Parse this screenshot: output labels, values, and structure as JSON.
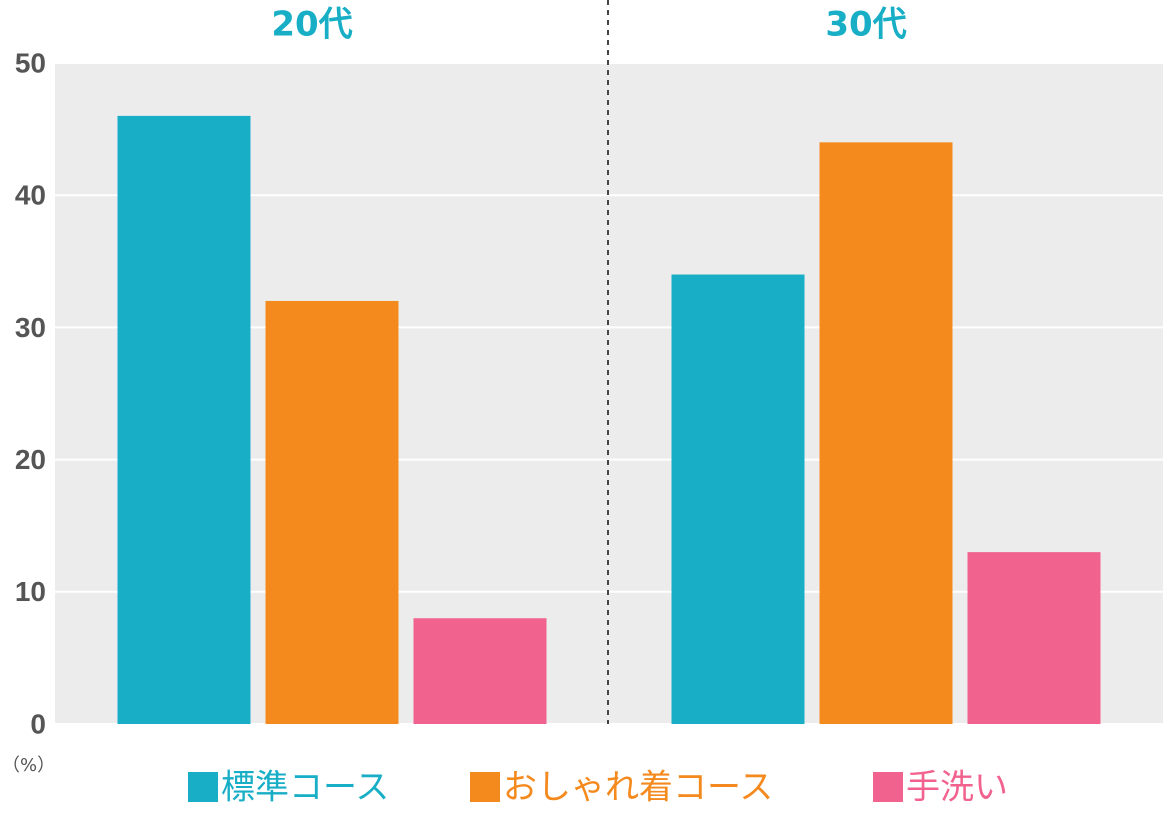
{
  "chart_data": {
    "type": "bar",
    "categories": [
      "20代",
      "30代"
    ],
    "series": [
      {
        "name": "標準コース",
        "color": "#17aec6",
        "values": [
          46,
          34
        ]
      },
      {
        "name": "おしゃれ着コース",
        "color": "#f48a1e",
        "values": [
          32,
          44
        ]
      },
      {
        "name": "手洗い",
        "color": "#f2628e",
        "values": [
          8,
          13
        ]
      }
    ],
    "y_label": "（%）",
    "ylim": [
      0,
      50
    ],
    "yticks": [
      0,
      10,
      20,
      30,
      40,
      50
    ],
    "grid": true
  }
}
